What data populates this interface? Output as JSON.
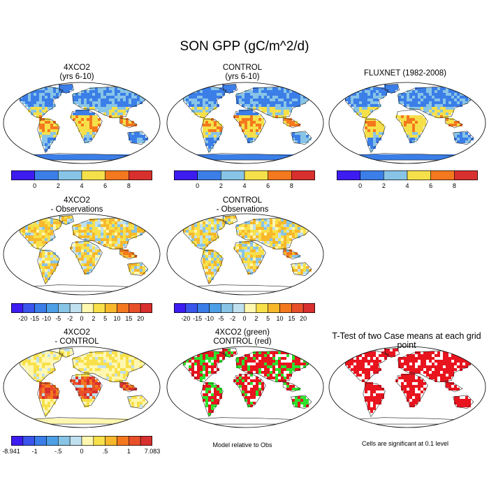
{
  "title": "SON GPP (gC/m^2/d)",
  "panels": [
    {
      "id": "p1",
      "title": "4XCO2\n(yrs 6-10)",
      "scheme": "abs"
    },
    {
      "id": "p2",
      "title": "CONTROL\n(yrs 6-10)",
      "scheme": "abs"
    },
    {
      "id": "p3",
      "title": "FLUXNET (1982-2008)",
      "scheme": "abs"
    },
    {
      "id": "p4",
      "title": "4XCO2\n- Observations",
      "scheme": "diff"
    },
    {
      "id": "p5",
      "title": "CONTROL\n- Observations",
      "scheme": "diff"
    },
    {
      "id": "p6",
      "title": "4XCO2\n- CONTROL",
      "scheme": "mc"
    },
    {
      "id": "p7",
      "title": "4XCO2 (green)\nCONTROL (red)",
      "scheme": "rg"
    },
    {
      "id": "p8",
      "title": "T-Test of two Case means at each grid point",
      "scheme": "tt"
    }
  ],
  "colorbars": {
    "abs": {
      "labels": [
        "0",
        "2",
        "4",
        "6",
        "8"
      ],
      "colors": [
        "#3c1cf0",
        "#3b7ee8",
        "#88c4e6",
        "#f6e04a",
        "#f4781e",
        "#d8302e"
      ]
    },
    "diff": {
      "labels": [
        "-20",
        "-15",
        "-10",
        "-5",
        "-2",
        "0",
        "2",
        "5",
        "10",
        "15",
        "20"
      ],
      "colors": [
        "#3c1cf0",
        "#3a55ec",
        "#3b7ee8",
        "#4d9fe6",
        "#88c4e6",
        "#bfe0ee",
        "#fff7b0",
        "#f8e04a",
        "#f7b82c",
        "#f4781e",
        "#e8502a",
        "#d8302e"
      ]
    },
    "mc": {
      "labels": [
        "-8.941",
        "-1",
        "-.5",
        "0",
        ".5",
        "1",
        "7.083"
      ],
      "colors": [
        "#3c1cf0",
        "#3a55ec",
        "#3b7ee8",
        "#4d9fe6",
        "#88c4e6",
        "#bfe0ee",
        "#fff7b0",
        "#f8e04a",
        "#f7b82c",
        "#f4781e",
        "#e8502a",
        "#d8302e"
      ]
    }
  },
  "notes": {
    "rg": "Model relative to Obs",
    "tt": "Cells are significant at 0.1 level"
  }
}
